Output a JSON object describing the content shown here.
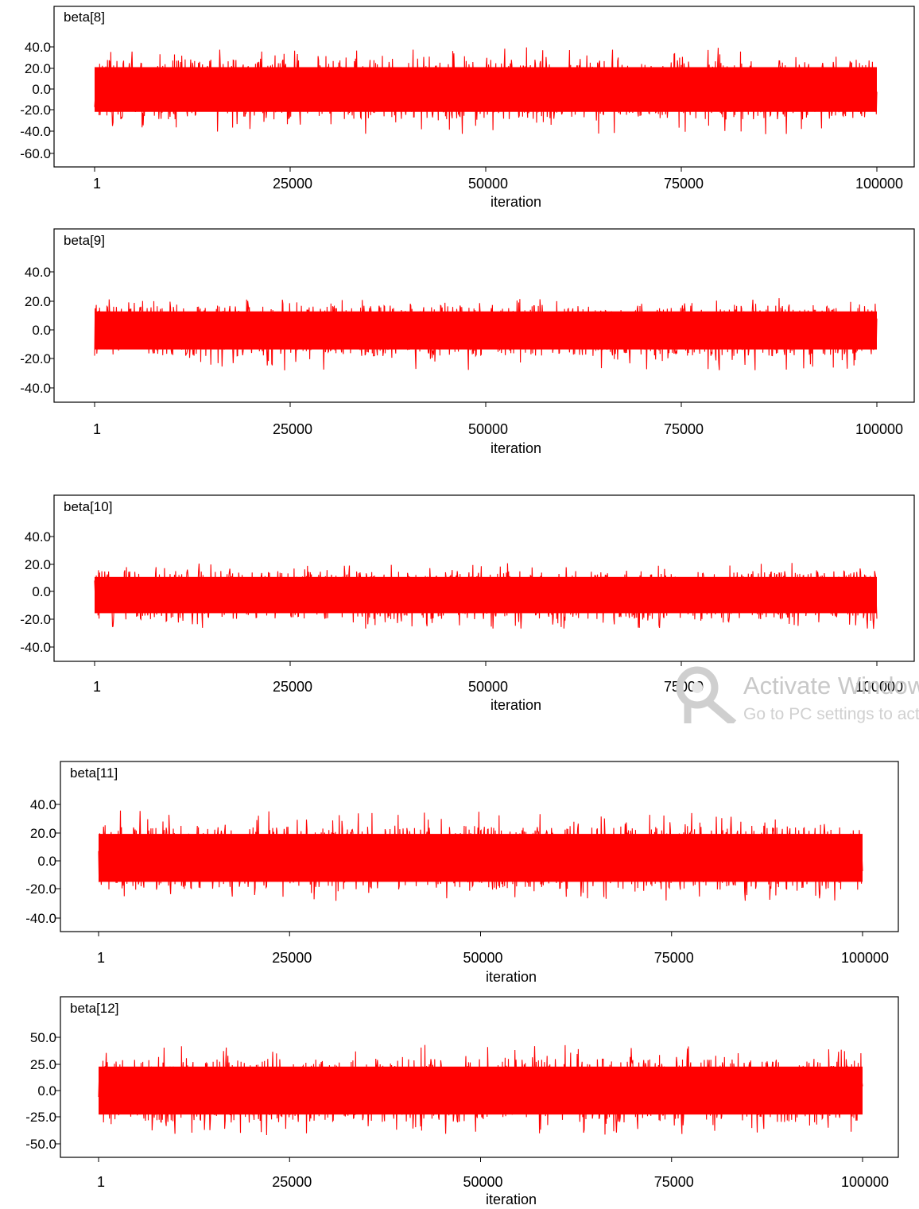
{
  "chart_data": [
    {
      "type": "line",
      "title": "beta[8]",
      "xlabel": "iteration",
      "ylabel": "",
      "x_ticks": [
        "1",
        "25000",
        "50000",
        "75000",
        "100000"
      ],
      "y_ticks": [
        "40.0",
        "20.0",
        "0.0",
        "-20.0",
        "-40.0",
        "-60.0"
      ],
      "xlim": [
        1,
        100000
      ],
      "ylim": [
        -65,
        65
      ],
      "series": [
        {
          "iterations": [
            1,
            100000
          ],
          "center": 0.0,
          "typical_range": [
            -28,
            28
          ],
          "extremes": [
            -42,
            40
          ],
          "color": "#ff0000"
        }
      ]
    },
    {
      "type": "line",
      "title": "beta[9]",
      "xlabel": "iteration",
      "ylabel": "",
      "x_ticks": [
        "1",
        "25000",
        "50000",
        "75000",
        "100000"
      ],
      "y_ticks": [
        "40.0",
        "20.0",
        "0.0",
        "-20.0",
        "-40.0"
      ],
      "xlim": [
        1,
        100000
      ],
      "ylim": [
        -50,
        60
      ],
      "series": [
        {
          "iterations": [
            1,
            100000
          ],
          "center": 0.0,
          "typical_range": [
            -18,
            17
          ],
          "extremes": [
            -28,
            22
          ],
          "color": "#ff0000"
        }
      ]
    },
    {
      "type": "line",
      "title": "beta[10]",
      "xlabel": "iteration",
      "ylabel": "",
      "x_ticks": [
        "1",
        "25000",
        "50000",
        "75000",
        "100000"
      ],
      "y_ticks": [
        "40.0",
        "20.0",
        "0.0",
        "-20.0",
        "-40.0"
      ],
      "xlim": [
        1,
        100000
      ],
      "ylim": [
        -50,
        70
      ],
      "series": [
        {
          "iterations": [
            1,
            100000
          ],
          "center": -2.0,
          "typical_range": [
            -20,
            15
          ],
          "extremes": [
            -27,
            21
          ],
          "color": "#ff0000"
        }
      ]
    },
    {
      "type": "line",
      "title": "beta[11]",
      "xlabel": "iteration",
      "ylabel": "",
      "x_ticks": [
        "1",
        "25000",
        "50000",
        "75000",
        "100000"
      ],
      "y_ticks": [
        "40.0",
        "20.0",
        "0.0",
        "-20.0",
        "-40.0"
      ],
      "xlim": [
        1,
        100000
      ],
      "ylim": [
        -50,
        62
      ],
      "series": [
        {
          "iterations": [
            1,
            100000
          ],
          "center": 2.0,
          "typical_range": [
            -20,
            25
          ],
          "extremes": [
            -28,
            36
          ],
          "color": "#ff0000"
        }
      ]
    },
    {
      "type": "line",
      "title": "beta[12]",
      "xlabel": "iteration",
      "ylabel": "",
      "x_ticks": [
        "1",
        "25000",
        "50000",
        "75000",
        "100000"
      ],
      "y_ticks": [
        "50.0",
        "25.0",
        "0.0",
        "-25.0",
        "-50.0"
      ],
      "xlim": [
        1,
        100000
      ],
      "ylim": [
        -62,
        75
      ],
      "series": [
        {
          "iterations": [
            1,
            100000
          ],
          "center": 0.0,
          "typical_range": [
            -30,
            30
          ],
          "extremes": [
            -42,
            43
          ],
          "color": "#ff0000"
        }
      ]
    }
  ],
  "watermark": {
    "line1": "Activate Windows",
    "line2": "Go to PC settings to activate Windows."
  }
}
